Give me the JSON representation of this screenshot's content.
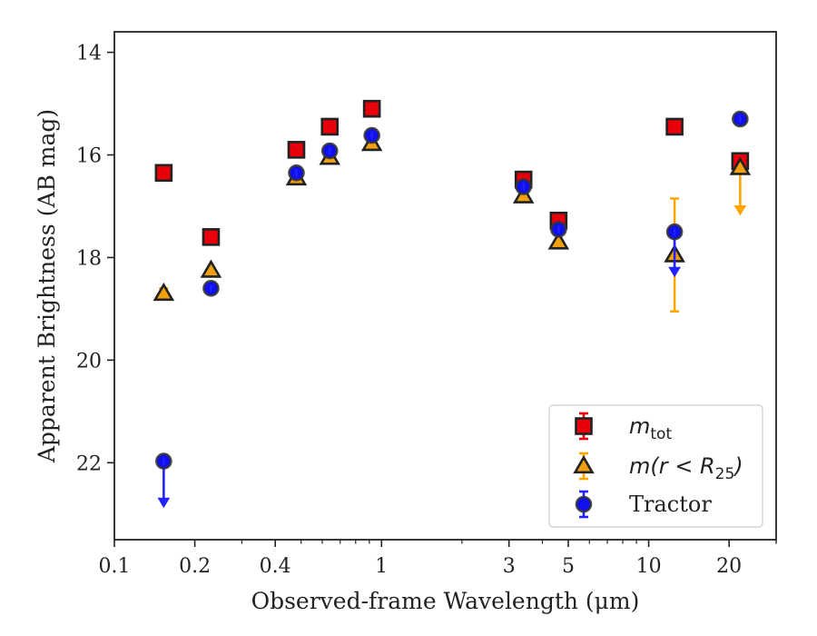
{
  "chart_data": {
    "type": "scatter",
    "xlabel": "Observed-frame Wavelength (μm)",
    "ylabel": "Apparent Brightness (AB mag)",
    "x_scale": "log",
    "xlim": [
      0.1,
      30
    ],
    "ylim": [
      23.5,
      13.6
    ],
    "y_inverted": true,
    "x_ticks": [
      {
        "value": 0.1,
        "label": "0.1"
      },
      {
        "value": 0.2,
        "label": "0.2"
      },
      {
        "value": 0.4,
        "label": "0.4"
      },
      {
        "value": 1,
        "label": "1"
      },
      {
        "value": 3,
        "label": "3"
      },
      {
        "value": 5,
        "label": "5"
      },
      {
        "value": 10,
        "label": "10"
      },
      {
        "value": 20,
        "label": "20"
      }
    ],
    "y_ticks": [
      {
        "value": 14,
        "label": "14"
      },
      {
        "value": 16,
        "label": "16"
      },
      {
        "value": 18,
        "label": "18"
      },
      {
        "value": 20,
        "label": "20"
      },
      {
        "value": 22,
        "label": "22"
      }
    ],
    "legend_position": "lower-right",
    "series": [
      {
        "name": "m_tot",
        "legend_label": "m_tot",
        "marker": "square",
        "color": "#e8000b",
        "error_color": "#e8000b",
        "points": [
          {
            "x": 0.153,
            "y": 16.35
          },
          {
            "x": 0.23,
            "y": 17.6
          },
          {
            "x": 0.48,
            "y": 15.9
          },
          {
            "x": 0.64,
            "y": 15.45
          },
          {
            "x": 0.92,
            "y": 15.1
          },
          {
            "x": 3.4,
            "y": 16.48
          },
          {
            "x": 4.6,
            "y": 17.28
          },
          {
            "x": 12.5,
            "y": 15.45
          },
          {
            "x": 22.0,
            "y": 16.12
          }
        ]
      },
      {
        "name": "m(r < R25)",
        "legend_label": "m(r < R25)",
        "marker": "triangle",
        "color": "#f0a010",
        "error_color": "#ffa500",
        "points": [
          {
            "x": 0.153,
            "y": 18.7,
            "yerr": 0.1
          },
          {
            "x": 0.23,
            "y": 18.25
          },
          {
            "x": 0.48,
            "y": 16.45
          },
          {
            "x": 0.64,
            "y": 16.05
          },
          {
            "x": 0.92,
            "y": 15.78
          },
          {
            "x": 3.4,
            "y": 16.8
          },
          {
            "x": 4.6,
            "y": 17.7
          },
          {
            "x": 12.5,
            "y": 17.95,
            "yerr": 1.1
          },
          {
            "x": 22.0,
            "y": 16.25,
            "upper_limit_to": 17.15
          }
        ]
      },
      {
        "name": "Tractor",
        "legend_label": "Tractor",
        "marker": "circle",
        "color": "#1010ee",
        "error_color": "#2222ff",
        "points": [
          {
            "x": 0.153,
            "y": 21.97,
            "upper_limit_to": 22.85
          },
          {
            "x": 0.23,
            "y": 18.6
          },
          {
            "x": 0.48,
            "y": 16.35
          },
          {
            "x": 0.64,
            "y": 15.92
          },
          {
            "x": 0.92,
            "y": 15.62
          },
          {
            "x": 3.4,
            "y": 16.62
          },
          {
            "x": 4.6,
            "y": 17.45
          },
          {
            "x": 12.5,
            "y": 17.5,
            "upper_limit_to": 18.35
          },
          {
            "x": 22.0,
            "y": 15.3
          }
        ]
      }
    ]
  }
}
